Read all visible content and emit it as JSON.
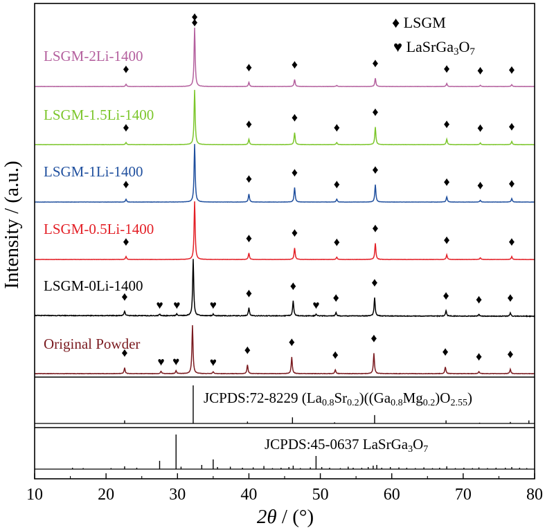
{
  "chart_data": {
    "type": "line",
    "title": "",
    "xlabel_italic": "2θ",
    "xlabel_rest": " / (°)",
    "ylabel": "Intensity / (a.u.)",
    "xlim": [
      10,
      80
    ],
    "xticks": [
      10,
      20,
      30,
      40,
      50,
      60,
      70,
      80
    ],
    "grid": false,
    "legend_position": "top-right",
    "legend": [
      {
        "symbol": "♦",
        "label": "LSGM"
      },
      {
        "symbol": "♥",
        "label_main": "LaSrGa",
        "label_sub1": "3",
        "label_mid": "O",
        "label_sub2": "7"
      }
    ],
    "series": [
      {
        "name": "LSGM-2Li-1400",
        "color": "#b4609e",
        "peaks": [
          [
            22.8,
            0.04
          ],
          [
            32.4,
            1.0
          ],
          [
            40.0,
            0.07
          ],
          [
            46.4,
            0.12
          ],
          [
            52.3,
            0.02
          ],
          [
            57.7,
            0.14
          ],
          [
            67.7,
            0.05
          ],
          [
            72.4,
            0.02
          ],
          [
            76.8,
            0.03
          ]
        ],
        "diamonds": [
          22.8,
          32.4,
          40.0,
          46.4,
          57.7,
          67.7,
          72.4,
          76.8
        ],
        "hearts": []
      },
      {
        "name": "LSGM-1.5Li-1400",
        "color": "#7cc62b",
        "peaks": [
          [
            22.8,
            0.04
          ],
          [
            32.4,
            1.0
          ],
          [
            40.0,
            0.1
          ],
          [
            46.4,
            0.22
          ],
          [
            52.3,
            0.04
          ],
          [
            57.7,
            0.32
          ],
          [
            67.7,
            0.1
          ],
          [
            72.4,
            0.03
          ],
          [
            76.8,
            0.06
          ]
        ],
        "diamonds": [
          22.8,
          40.0,
          46.4,
          52.3,
          57.7,
          67.7,
          72.4,
          76.8
        ],
        "hearts": []
      },
      {
        "name": "LSGM-1Li-1400",
        "color": "#1f4f9e",
        "peaks": [
          [
            22.8,
            0.05
          ],
          [
            32.4,
            1.0
          ],
          [
            40.0,
            0.14
          ],
          [
            46.4,
            0.25
          ],
          [
            52.3,
            0.05
          ],
          [
            57.7,
            0.3
          ],
          [
            67.7,
            0.09
          ],
          [
            72.4,
            0.03
          ],
          [
            76.8,
            0.06
          ]
        ],
        "diamonds": [
          22.8,
          40.0,
          46.4,
          52.3,
          57.7,
          67.7,
          72.4,
          76.8
        ],
        "hearts": []
      },
      {
        "name": "LSGM-0.5Li-1400",
        "color": "#e31f26",
        "peaks": [
          [
            22.8,
            0.05
          ],
          [
            32.4,
            1.0
          ],
          [
            40.0,
            0.11
          ],
          [
            46.4,
            0.2
          ],
          [
            52.3,
            0.04
          ],
          [
            57.7,
            0.28
          ],
          [
            67.7,
            0.08
          ],
          [
            72.4,
            0.03
          ],
          [
            76.8,
            0.05
          ]
        ],
        "diamonds": [
          22.8,
          40.0,
          46.4,
          52.3,
          57.7,
          67.7,
          76.8
        ],
        "hearts": []
      },
      {
        "name": "LSGM-0Li-1400",
        "color": "#000000",
        "peaks": [
          [
            22.6,
            0.08
          ],
          [
            27.5,
            0.03
          ],
          [
            29.9,
            0.03
          ],
          [
            32.2,
            1.0
          ],
          [
            35.0,
            0.03
          ],
          [
            40.0,
            0.14
          ],
          [
            46.2,
            0.27
          ],
          [
            49.4,
            0.03
          ],
          [
            52.2,
            0.06
          ],
          [
            57.6,
            0.33
          ],
          [
            67.6,
            0.1
          ],
          [
            72.2,
            0.03
          ],
          [
            76.6,
            0.06
          ]
        ],
        "diamonds": [
          22.6,
          40.0,
          46.2,
          52.2,
          57.6,
          67.6,
          72.2,
          76.6
        ],
        "hearts": [
          27.5,
          29.9,
          35.0,
          49.4
        ]
      },
      {
        "name": "Original Powder",
        "color": "#7a1a1f",
        "peaks": [
          [
            22.6,
            0.12
          ],
          [
            27.7,
            0.05
          ],
          [
            29.8,
            0.06
          ],
          [
            32.1,
            1.0
          ],
          [
            35.0,
            0.04
          ],
          [
            39.8,
            0.18
          ],
          [
            46.0,
            0.34
          ],
          [
            52.1,
            0.08
          ],
          [
            57.5,
            0.42
          ],
          [
            67.5,
            0.14
          ],
          [
            72.2,
            0.04
          ],
          [
            76.6,
            0.09
          ]
        ],
        "diamonds": [
          22.6,
          39.8,
          46.0,
          52.1,
          57.5,
          67.5,
          72.2,
          76.6
        ],
        "hearts": [
          27.7,
          29.8,
          35.0
        ]
      }
    ],
    "reference_panels": [
      {
        "label_prefix": "JCPDS:72-8229 (La",
        "label_parts": [
          [
            "0.8",
            "sub"
          ],
          [
            "Sr",
            ""
          ],
          [
            "0.2",
            "sub"
          ],
          [
            ")((Ga",
            ""
          ],
          [
            "0.8",
            "sub"
          ],
          [
            "Mg",
            ""
          ],
          [
            "0.2",
            "sub"
          ],
          [
            ")O",
            ""
          ],
          [
            "2.55",
            "sub"
          ],
          [
            ")",
            ""
          ]
        ],
        "sticks": [
          [
            22.6,
            0.08
          ],
          [
            32.2,
            1.0
          ],
          [
            39.8,
            0.05
          ],
          [
            46.1,
            0.16
          ],
          [
            52.0,
            0.03
          ],
          [
            57.6,
            0.22
          ],
          [
            67.6,
            0.08
          ],
          [
            72.3,
            0.02
          ],
          [
            76.6,
            0.04
          ],
          [
            79.2,
            0.08
          ]
        ]
      },
      {
        "label_prefix": "JCPDS:45-0637 LaSrGa",
        "label_parts": [
          [
            "3",
            "sub"
          ],
          [
            "O",
            ""
          ],
          [
            "7",
            "sub"
          ]
        ],
        "sticks": [
          [
            15.3,
            0.04
          ],
          [
            16.8,
            0.03
          ],
          [
            20.7,
            0.03
          ],
          [
            22.6,
            0.08
          ],
          [
            24.3,
            0.04
          ],
          [
            27.5,
            0.24
          ],
          [
            29.8,
            1.0
          ],
          [
            30.5,
            0.07
          ],
          [
            33.4,
            0.12
          ],
          [
            35.0,
            0.28
          ],
          [
            35.6,
            0.06
          ],
          [
            37.4,
            0.07
          ],
          [
            39.1,
            0.04
          ],
          [
            40.6,
            0.05
          ],
          [
            42.1,
            0.09
          ],
          [
            43.3,
            0.03
          ],
          [
            44.5,
            0.04
          ],
          [
            45.6,
            0.06
          ],
          [
            46.2,
            0.1
          ],
          [
            47.2,
            0.03
          ],
          [
            48.6,
            0.05
          ],
          [
            49.4,
            0.38
          ],
          [
            50.2,
            0.06
          ],
          [
            51.3,
            0.04
          ],
          [
            52.8,
            0.03
          ],
          [
            53.9,
            0.07
          ],
          [
            54.6,
            0.04
          ],
          [
            55.8,
            0.04
          ],
          [
            56.7,
            0.06
          ],
          [
            57.4,
            0.1
          ],
          [
            57.9,
            0.12
          ],
          [
            58.6,
            0.04
          ],
          [
            59.8,
            0.06
          ],
          [
            61.0,
            0.05
          ],
          [
            62.1,
            0.04
          ],
          [
            63.3,
            0.03
          ],
          [
            64.5,
            0.05
          ],
          [
            65.7,
            0.03
          ],
          [
            66.7,
            0.04
          ],
          [
            67.7,
            0.08
          ],
          [
            68.9,
            0.03
          ],
          [
            70.1,
            0.04
          ],
          [
            71.3,
            0.03
          ],
          [
            72.2,
            0.05
          ],
          [
            73.4,
            0.03
          ],
          [
            74.6,
            0.04
          ],
          [
            75.9,
            0.04
          ],
          [
            76.8,
            0.06
          ],
          [
            77.9,
            0.04
          ],
          [
            78.9,
            0.03
          ]
        ]
      }
    ]
  }
}
